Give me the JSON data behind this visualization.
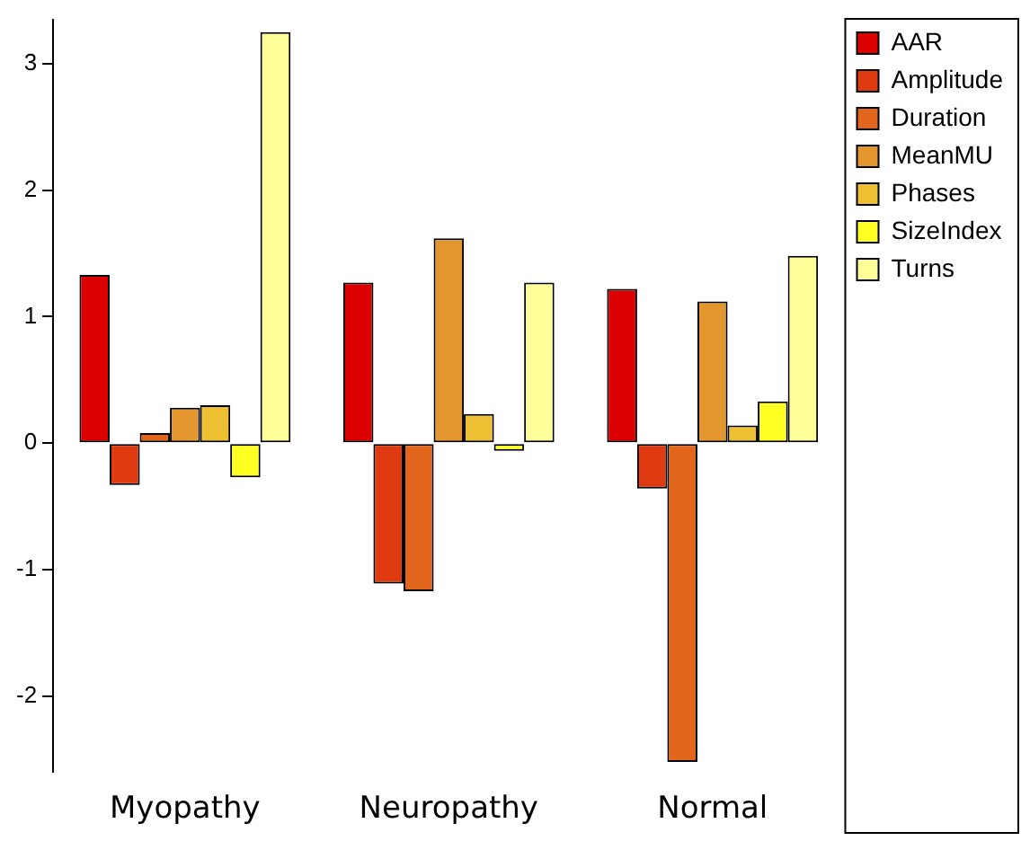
{
  "chart_data": {
    "type": "bar",
    "categories": [
      "Myopathy",
      "Neuropathy",
      "Normal"
    ],
    "series": [
      {
        "name": "AAR",
        "color": "#dd0000",
        "values": [
          1.33,
          1.27,
          1.22
        ]
      },
      {
        "name": "Amplitude",
        "color": "#e03a10",
        "values": [
          -0.33,
          -1.11,
          -0.36
        ]
      },
      {
        "name": "Duration",
        "color": "#e2661c",
        "values": [
          0.08,
          -1.17,
          -2.52
        ]
      },
      {
        "name": "MeanMU",
        "color": "#e3962e",
        "values": [
          0.28,
          1.62,
          1.12
        ]
      },
      {
        "name": "Phases",
        "color": "#ecc032",
        "values": [
          0.3,
          0.23,
          0.14
        ]
      },
      {
        "name": "SizeIndex",
        "color": "#ffff22",
        "values": [
          -0.27,
          -0.06,
          0.33
        ]
      },
      {
        "name": "Turns",
        "color": "#ffff99",
        "values": [
          3.25,
          1.27,
          1.48
        ]
      }
    ],
    "ylim": [
      -2.6,
      3.35
    ],
    "yticks": [
      -2,
      -1,
      0,
      1,
      2,
      3
    ],
    "grid": false,
    "legend": "top right"
  }
}
